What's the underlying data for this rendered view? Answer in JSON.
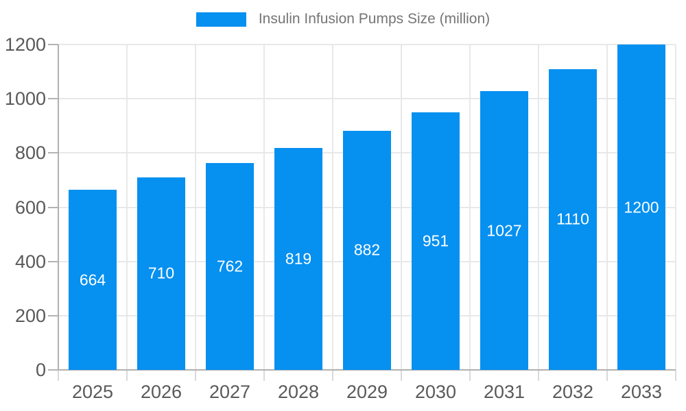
{
  "legend": {
    "label": "Insulin Infusion Pumps Size (million)"
  },
  "colors": {
    "bar": "#0690F0",
    "grid": "#e8e8e8",
    "axis": "#b0b0b0",
    "axis_text": "#595959",
    "bar_label_text": "#ffffff",
    "legend_text": "#757575"
  },
  "chart_data": {
    "type": "bar",
    "title": "Insulin Infusion Pumps Size (million)",
    "categories": [
      "2025",
      "2026",
      "2027",
      "2028",
      "2029",
      "2030",
      "2031",
      "2032",
      "2033"
    ],
    "values": [
      664,
      710,
      762,
      819,
      882,
      951,
      1027,
      1110,
      1200
    ],
    "series": [
      {
        "name": "Insulin Infusion Pumps Size (million)",
        "values": [
          664,
          710,
          762,
          819,
          882,
          951,
          1027,
          1110,
          1200
        ]
      }
    ],
    "xlabel": "",
    "ylabel": "",
    "ylim": [
      0,
      1200
    ],
    "ytick_step": 200,
    "yticks": [
      "0",
      "200",
      "400",
      "600",
      "800",
      "1000",
      "1200"
    ],
    "grid": true,
    "legend_position": "top-center",
    "bar_labels_visible": true
  }
}
